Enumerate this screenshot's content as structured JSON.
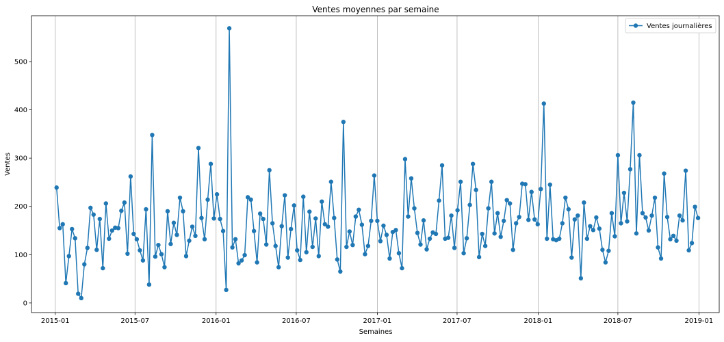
{
  "chart_data": {
    "type": "line",
    "title": "Ventes moyennes par semaine",
    "xlabel": "Semaines",
    "ylabel": "Ventes",
    "xlim": [
      "2014-11-08",
      "2019-02-16"
    ],
    "ylim": [
      -20,
      595
    ],
    "xticks": [
      {
        "date": "2015-01-01",
        "label": "2015-01"
      },
      {
        "date": "2015-07-01",
        "label": "2015-07"
      },
      {
        "date": "2016-01-01",
        "label": "2016-01"
      },
      {
        "date": "2016-07-01",
        "label": "2016-07"
      },
      {
        "date": "2017-01-01",
        "label": "2017-01"
      },
      {
        "date": "2017-07-01",
        "label": "2017-07"
      },
      {
        "date": "2018-01-01",
        "label": "2018-01"
      },
      {
        "date": "2018-07-01",
        "label": "2018-07"
      },
      {
        "date": "2019-01-01",
        "label": "2019-01"
      }
    ],
    "yticks": [
      0,
      100,
      200,
      300,
      400,
      500
    ],
    "grid": "vertical",
    "legend": "top-right",
    "color": "#1f77b4",
    "series": [
      {
        "name": "Ventes journalières",
        "x_start": "2015-01-04",
        "x_step_days": 7,
        "values": [
          239,
          155,
          163,
          41,
          97,
          153,
          134,
          19,
          10,
          80,
          114,
          197,
          183,
          110,
          174,
          72,
          206,
          133,
          150,
          156,
          155,
          191,
          208,
          102,
          262,
          143,
          132,
          109,
          88,
          194,
          38,
          348,
          96,
          120,
          101,
          74,
          190,
          122,
          166,
          141,
          218,
          190,
          97,
          129,
          158,
          139,
          321,
          176,
          132,
          214,
          288,
          175,
          225,
          174,
          149,
          27,
          569,
          115,
          132,
          82,
          88,
          99,
          219,
          214,
          149,
          84,
          185,
          174,
          121,
          275,
          165,
          118,
          74,
          159,
          223,
          94,
          153,
          202,
          109,
          89,
          220,
          105,
          189,
          116,
          175,
          97,
          210,
          163,
          158,
          251,
          176,
          90,
          65,
          375,
          116,
          148,
          120,
          179,
          193,
          162,
          101,
          118,
          170,
          264,
          170,
          128,
          160,
          141,
          92,
          147,
          151,
          103,
          72,
          298,
          179,
          258,
          196,
          145,
          121,
          171,
          111,
          133,
          146,
          143,
          212,
          285,
          133,
          135,
          181,
          114,
          192,
          251,
          103,
          134,
          203,
          288,
          234,
          95,
          143,
          118,
          196,
          251,
          144,
          186,
          137,
          170,
          213,
          206,
          110,
          165,
          178,
          247,
          246,
          172,
          230,
          173,
          163,
          236,
          413,
          133,
          245,
          132,
          130,
          133,
          165,
          218,
          194,
          94,
          173,
          181,
          51,
          208,
          133,
          159,
          151,
          177,
          154,
          110,
          84,
          108,
          186,
          138,
          306,
          165,
          228,
          169,
          277,
          415,
          144,
          306,
          186,
          177,
          150,
          181,
          218,
          115,
          92,
          268,
          178,
          132,
          139,
          129,
          181,
          171,
          274,
          109,
          124,
          199,
          176
        ]
      }
    ]
  }
}
